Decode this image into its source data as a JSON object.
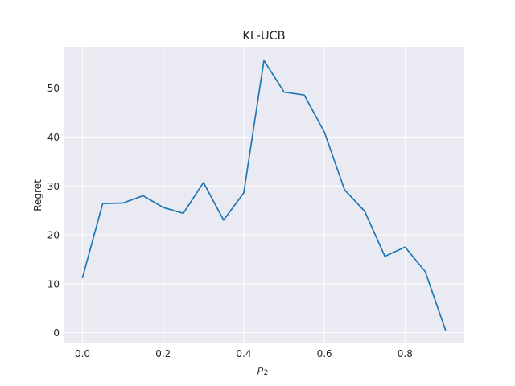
{
  "chart_data": {
    "type": "line",
    "title": "KL-UCB",
    "xlabel": "p",
    "xlabel_subscript": "2",
    "ylabel": "Regret",
    "xlim": [
      -0.045,
      0.945
    ],
    "ylim": [
      -2.2,
      58.5
    ],
    "xticks": [
      0.0,
      0.2,
      0.4,
      0.6,
      0.8
    ],
    "xtick_labels": [
      "0.0",
      "0.2",
      "0.4",
      "0.6",
      "0.8"
    ],
    "yticks": [
      0,
      10,
      20,
      30,
      40,
      50
    ],
    "ytick_labels": [
      "0",
      "10",
      "20",
      "30",
      "40",
      "50"
    ],
    "grid": true,
    "background": "#eaeaf2",
    "series": [
      {
        "color": "#1f77b4",
        "x": [
          0.0,
          0.05,
          0.1,
          0.15,
          0.2,
          0.25,
          0.3,
          0.35,
          0.4,
          0.45,
          0.5,
          0.55,
          0.6,
          0.65,
          0.7,
          0.75,
          0.8,
          0.85,
          0.9
        ],
        "y": [
          11.3,
          26.4,
          26.5,
          28.0,
          25.6,
          24.4,
          30.7,
          23.0,
          28.6,
          55.7,
          49.2,
          48.6,
          41.0,
          29.2,
          24.8,
          15.6,
          17.5,
          12.5,
          0.6
        ]
      }
    ]
  }
}
